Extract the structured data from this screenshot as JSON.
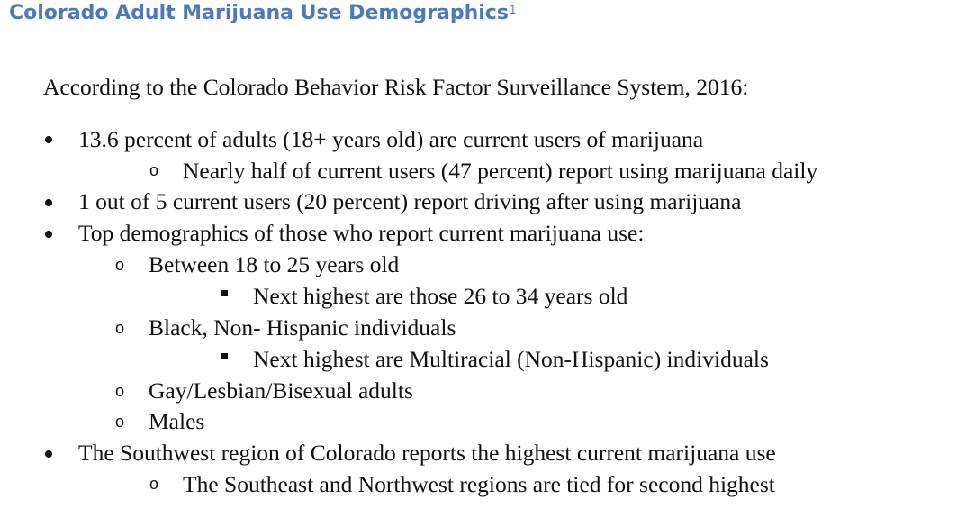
{
  "title": "Colorado Adult Marijuana Use Demographics",
  "title_footnote": "1",
  "intro": "According to the Colorado Behavior Risk Factor Surveillance System, 2016:",
  "items": [
    {
      "text": "13.6 percent of adults (18+ years old) are current users of marijuana"
    },
    {
      "text": "Nearly half of current users (47 percent) report using marijuana daily"
    },
    {
      "text": "1 out of 5 current users (20 percent) report driving after using marijuana"
    },
    {
      "text": "Top demographics of those who report current marijuana use:"
    },
    {
      "text": "Between 18 to 25 years old"
    },
    {
      "text": "Next highest are those 26 to 34 years old"
    },
    {
      "text": "Black, Non- Hispanic individuals"
    },
    {
      "text": "Next highest are Multiracial (Non-Hispanic) individuals"
    },
    {
      "text": "Gay/Lesbian/Bisexual adults"
    },
    {
      "text": "Males"
    },
    {
      "text": "The Southwest region of Colorado reports the highest current marijuana use"
    },
    {
      "text": "The Southeast and Northwest regions are tied for second highest"
    }
  ],
  "colors": {
    "title": "#4e79b8",
    "text": "#111111"
  }
}
